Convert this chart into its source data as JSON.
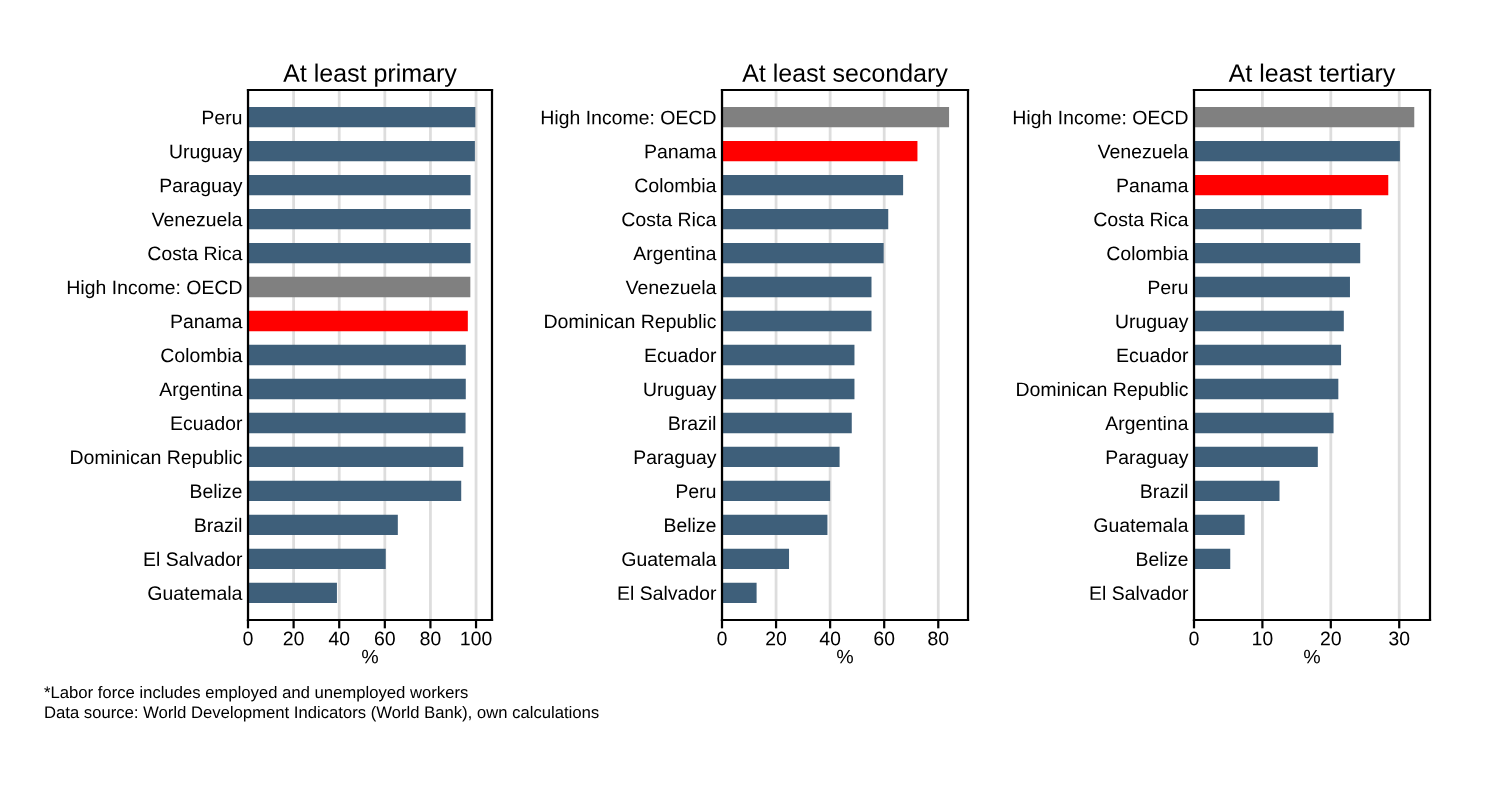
{
  "chart_data": [
    {
      "type": "bar",
      "orientation": "horizontal",
      "title": "At least primary",
      "xlabel": "%",
      "grid": "x",
      "categories": [
        "Peru",
        "Uruguay",
        "Paraguay",
        "Venezuela",
        "Costa Rica",
        "High Income: OECD",
        "Panama",
        "Colombia",
        "Argentina",
        "Ecuador",
        "Dominican Republic",
        "Belize",
        "Brazil",
        "El Salvador",
        "Guatemala"
      ],
      "values": [
        99.7,
        99.5,
        97.6,
        97.6,
        97.6,
        97.5,
        96.4,
        95.5,
        95.5,
        95.4,
        94.4,
        93.5,
        65.7,
        60.4,
        39
      ],
      "colors": [
        "#3e5f7a",
        "#3e5f7a",
        "#3e5f7a",
        "#3e5f7a",
        "#3e5f7a",
        "#808080",
        "#ff0000",
        "#3e5f7a",
        "#3e5f7a",
        "#3e5f7a",
        "#3e5f7a",
        "#3e5f7a",
        "#3e5f7a",
        "#3e5f7a",
        "#3e5f7a"
      ],
      "xlim": [
        0,
        107
      ],
      "xticks": [
        0,
        20,
        40,
        60,
        80,
        100
      ]
    },
    {
      "type": "bar",
      "orientation": "horizontal",
      "title": "At least secondary",
      "xlabel": "%",
      "grid": "x",
      "categories": [
        "High Income: OECD",
        "Panama",
        "Colombia",
        "Costa Rica",
        "Argentina",
        "Venezuela",
        "Dominican Republic",
        "Ecuador",
        "Uruguay",
        "Brazil",
        "Paraguay",
        "Peru",
        "Belize",
        "Guatemala",
        "El Salvador"
      ],
      "values": [
        84,
        72.3,
        67,
        61.5,
        59.8,
        55.3,
        55.3,
        49,
        49,
        48,
        43.5,
        40,
        39,
        24.8,
        12.8
      ],
      "colors": [
        "#808080",
        "#ff0000",
        "#3e5f7a",
        "#3e5f7a",
        "#3e5f7a",
        "#3e5f7a",
        "#3e5f7a",
        "#3e5f7a",
        "#3e5f7a",
        "#3e5f7a",
        "#3e5f7a",
        "#3e5f7a",
        "#3e5f7a",
        "#3e5f7a",
        "#3e5f7a"
      ],
      "xlim": [
        0,
        91
      ],
      "xticks": [
        0,
        20,
        40,
        60,
        80
      ]
    },
    {
      "type": "bar",
      "orientation": "horizontal",
      "title": "At least tertiary",
      "xlabel": "%",
      "grid": "x",
      "categories": [
        "High Income: OECD",
        "Venezuela",
        "Panama",
        "Costa Rica",
        "Colombia",
        "Peru",
        "Uruguay",
        "Ecuador",
        "Dominican Republic",
        "Argentina",
        "Paraguay",
        "Brazil",
        "Guatemala",
        "Belize",
        "El Salvador"
      ],
      "values": [
        32.2,
        30.1,
        28.4,
        24.5,
        24.3,
        22.8,
        21.9,
        21.5,
        21.1,
        20.4,
        18.1,
        12.5,
        7.4,
        5.3,
        null
      ],
      "colors": [
        "#808080",
        "#3e5f7a",
        "#ff0000",
        "#3e5f7a",
        "#3e5f7a",
        "#3e5f7a",
        "#3e5f7a",
        "#3e5f7a",
        "#3e5f7a",
        "#3e5f7a",
        "#3e5f7a",
        "#3e5f7a",
        "#3e5f7a",
        "#3e5f7a",
        "#3e5f7a"
      ],
      "xlim": [
        0,
        34.5
      ],
      "xticks": [
        0,
        10,
        20,
        30
      ],
      "annotations": [
        "*Labor force includes employed and unemployed workers",
        "Data source: World Development Indicators (World Bank), own calculations"
      ]
    }
  ]
}
